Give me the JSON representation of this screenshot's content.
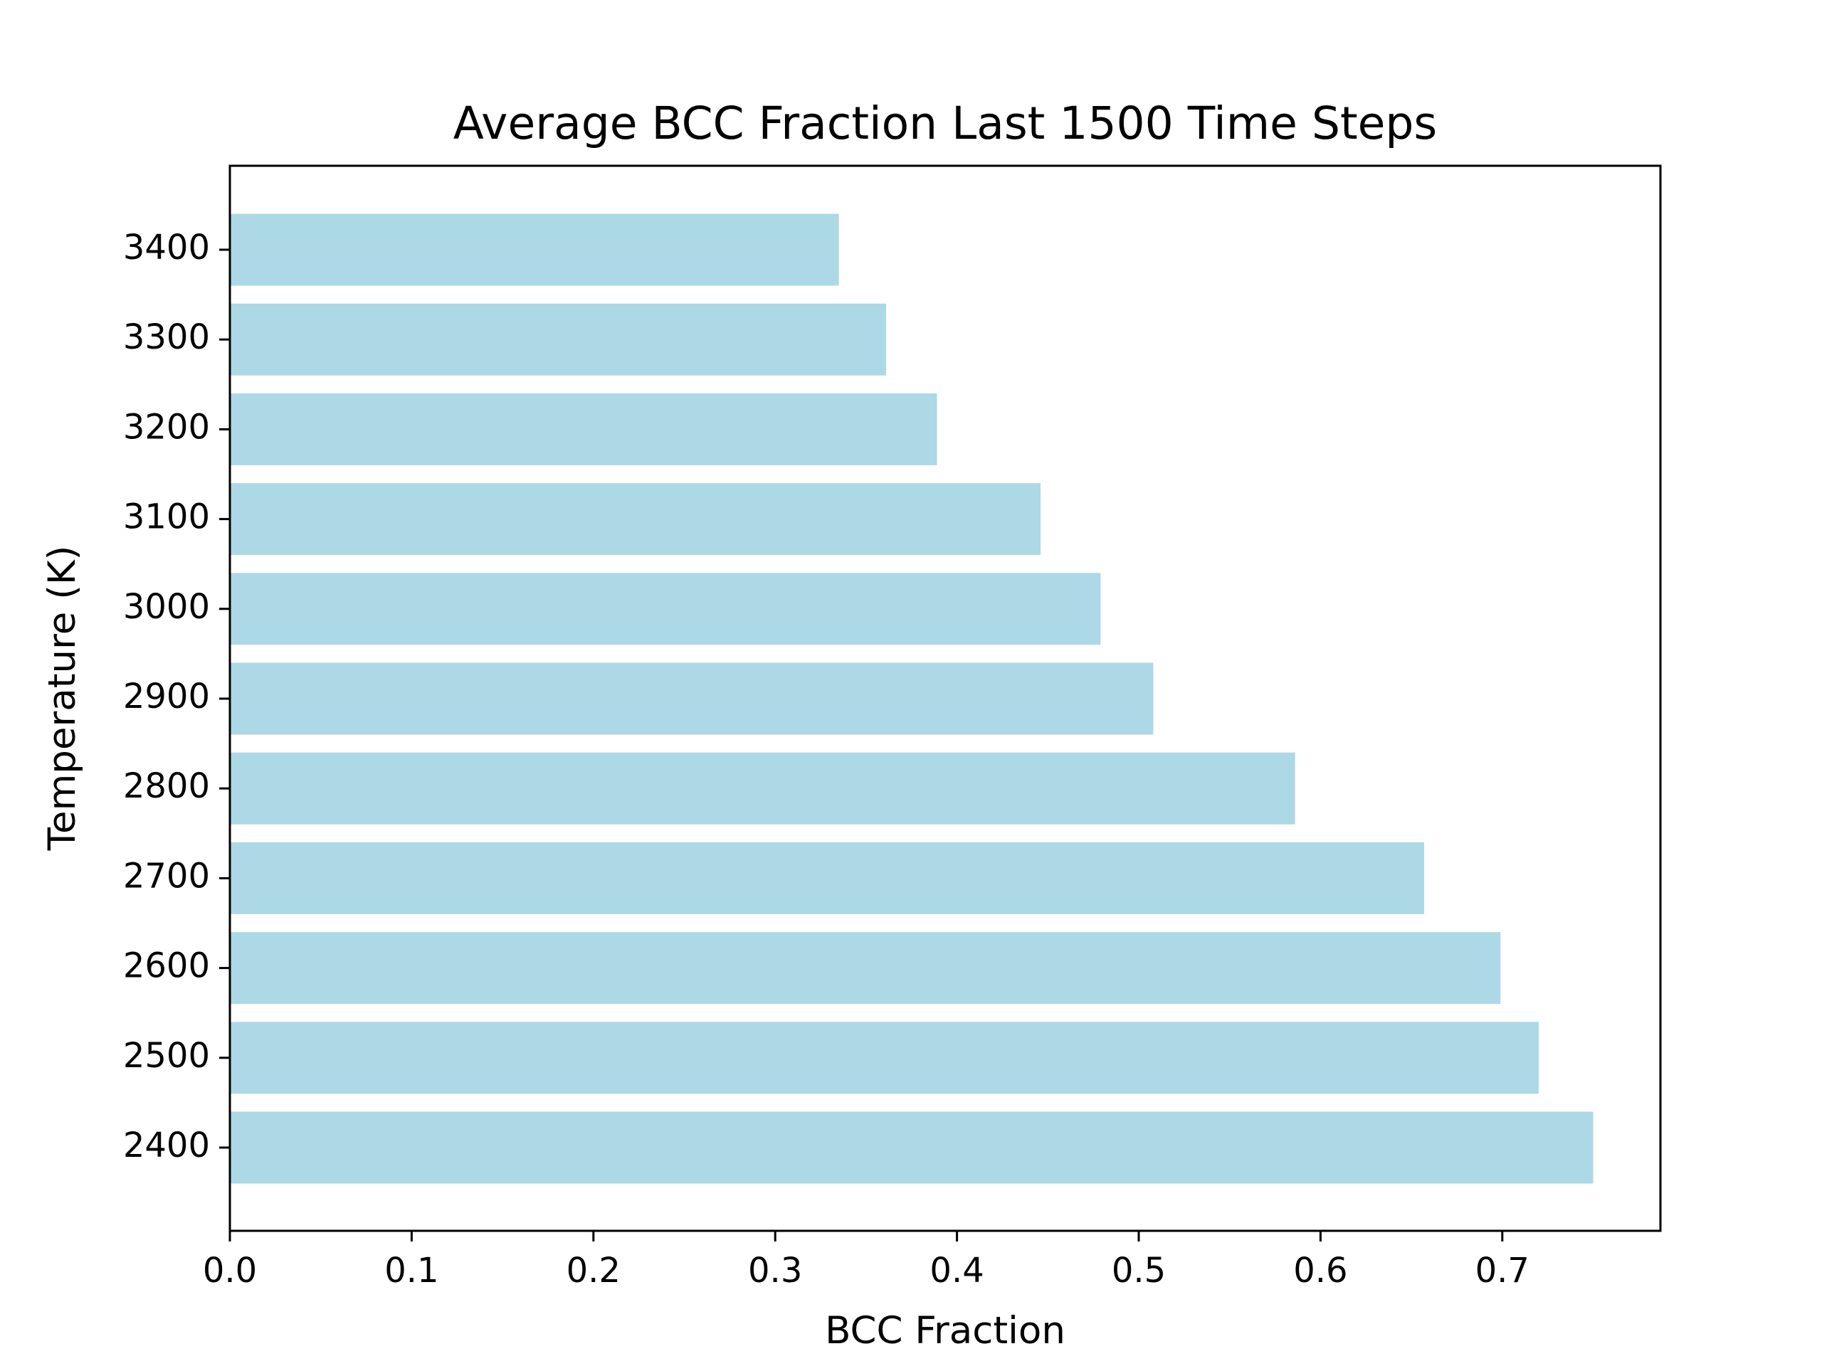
{
  "chart_data": {
    "type": "bar",
    "orientation": "horizontal",
    "title": "Average BCC Fraction Last 1500 Time Steps",
    "xlabel": "BCC Fraction",
    "ylabel": "Temperature (K)",
    "categories": [
      "2400",
      "2500",
      "2600",
      "2700",
      "2800",
      "2900",
      "3000",
      "3100",
      "3200",
      "3300",
      "3400"
    ],
    "values": [
      0.75,
      0.72,
      0.699,
      0.657,
      0.586,
      0.508,
      0.479,
      0.446,
      0.389,
      0.361,
      0.335
    ],
    "xlim": [
      0,
      0.787
    ],
    "xticks": [
      "0.0",
      "0.1",
      "0.2",
      "0.3",
      "0.4",
      "0.5",
      "0.6",
      "0.7"
    ],
    "bar_color": "#add8e6",
    "grid": false,
    "legend": "none"
  }
}
